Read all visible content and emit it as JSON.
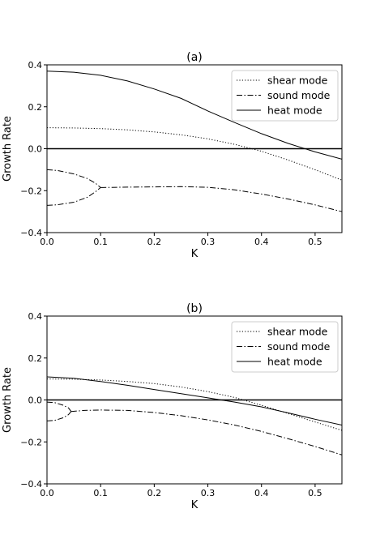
{
  "chart_data": [
    {
      "type": "line",
      "title": "(a)",
      "xlabel": "K",
      "ylabel": "Growth Rate",
      "xlim": [
        0.0,
        0.55
      ],
      "ylim": [
        -0.4,
        0.4
      ],
      "xticks": [
        "0.0",
        "0.1",
        "0.2",
        "0.3",
        "0.4",
        "0.5"
      ],
      "yticks": [
        "−0.4",
        "−0.2",
        "0.0",
        "0.2",
        "0.4"
      ],
      "grid": false,
      "legend_position": "top-right",
      "zero_line": 0.0,
      "series": [
        {
          "name": "shear mode",
          "style": "dotted",
          "segments": [
            [
              [
                0.0,
                0.1
              ],
              [
                0.05,
                0.099
              ],
              [
                0.1,
                0.096
              ],
              [
                0.15,
                0.09
              ],
              [
                0.2,
                0.08
              ],
              [
                0.25,
                0.066
              ],
              [
                0.3,
                0.047
              ],
              [
                0.35,
                0.021
              ],
              [
                0.4,
                -0.012
              ],
              [
                0.45,
                -0.054
              ],
              [
                0.5,
                -0.1
              ],
              [
                0.55,
                -0.15
              ]
            ]
          ]
        },
        {
          "name": "sound mode",
          "style": "dashdot",
          "segments": [
            [
              [
                0.0,
                -0.1
              ],
              [
                0.02,
                -0.104
              ],
              [
                0.05,
                -0.12
              ],
              [
                0.075,
                -0.142
              ],
              [
                0.09,
                -0.164
              ],
              [
                0.1,
                -0.185
              ]
            ],
            [
              [
                0.0,
                -0.27
              ],
              [
                0.02,
                -0.267
              ],
              [
                0.05,
                -0.255
              ],
              [
                0.075,
                -0.232
              ],
              [
                0.09,
                -0.206
              ],
              [
                0.1,
                -0.185
              ]
            ],
            [
              [
                0.1,
                -0.185
              ],
              [
                0.15,
                -0.183
              ],
              [
                0.2,
                -0.182
              ],
              [
                0.25,
                -0.181
              ],
              [
                0.3,
                -0.184
              ],
              [
                0.35,
                -0.196
              ],
              [
                0.4,
                -0.216
              ],
              [
                0.45,
                -0.24
              ],
              [
                0.5,
                -0.268
              ],
              [
                0.55,
                -0.3
              ]
            ]
          ]
        },
        {
          "name": "heat mode",
          "style": "solid",
          "segments": [
            [
              [
                0.0,
                0.37
              ],
              [
                0.05,
                0.365
              ],
              [
                0.1,
                0.35
              ],
              [
                0.15,
                0.323
              ],
              [
                0.2,
                0.285
              ],
              [
                0.25,
                0.24
              ],
              [
                0.3,
                0.18
              ],
              [
                0.35,
                0.125
              ],
              [
                0.4,
                0.072
              ],
              [
                0.45,
                0.025
              ],
              [
                0.5,
                -0.015
              ],
              [
                0.55,
                -0.05
              ]
            ]
          ]
        }
      ]
    },
    {
      "type": "line",
      "title": "(b)",
      "xlabel": "K",
      "ylabel": "Growth Rate",
      "xlim": [
        0.0,
        0.55
      ],
      "ylim": [
        -0.4,
        0.4
      ],
      "xticks": [
        "0.0",
        "0.1",
        "0.2",
        "0.3",
        "0.4",
        "0.5"
      ],
      "yticks": [
        "−0.4",
        "−0.2",
        "0.0",
        "0.2",
        "0.4"
      ],
      "grid": false,
      "legend_position": "top-right",
      "zero_line": 0.0,
      "series": [
        {
          "name": "shear mode",
          "style": "dotted",
          "segments": [
            [
              [
                0.0,
                0.1
              ],
              [
                0.05,
                0.099
              ],
              [
                0.1,
                0.095
              ],
              [
                0.15,
                0.088
              ],
              [
                0.2,
                0.078
              ],
              [
                0.25,
                0.062
              ],
              [
                0.3,
                0.04
              ],
              [
                0.35,
                0.012
              ],
              [
                0.4,
                -0.025
              ],
              [
                0.45,
                -0.065
              ],
              [
                0.5,
                -0.105
              ],
              [
                0.55,
                -0.145
              ]
            ]
          ]
        },
        {
          "name": "sound mode",
          "style": "dashdot",
          "segments": [
            [
              [
                0.0,
                -0.01
              ],
              [
                0.015,
                -0.013
              ],
              [
                0.03,
                -0.025
              ],
              [
                0.04,
                -0.038
              ],
              [
                0.045,
                -0.055
              ]
            ],
            [
              [
                0.0,
                -0.1
              ],
              [
                0.015,
                -0.097
              ],
              [
                0.03,
                -0.085
              ],
              [
                0.04,
                -0.07
              ],
              [
                0.045,
                -0.055
              ]
            ],
            [
              [
                0.045,
                -0.055
              ],
              [
                0.07,
                -0.05
              ],
              [
                0.1,
                -0.048
              ],
              [
                0.15,
                -0.05
              ],
              [
                0.2,
                -0.06
              ],
              [
                0.25,
                -0.075
              ],
              [
                0.3,
                -0.095
              ],
              [
                0.35,
                -0.12
              ],
              [
                0.4,
                -0.15
              ],
              [
                0.45,
                -0.185
              ],
              [
                0.5,
                -0.222
              ],
              [
                0.55,
                -0.262
              ]
            ]
          ]
        },
        {
          "name": "heat mode",
          "style": "solid",
          "segments": [
            [
              [
                0.0,
                0.11
              ],
              [
                0.05,
                0.103
              ],
              [
                0.1,
                0.088
              ],
              [
                0.15,
                0.07
              ],
              [
                0.2,
                0.05
              ],
              [
                0.25,
                0.03
              ],
              [
                0.3,
                0.01
              ],
              [
                0.35,
                -0.01
              ],
              [
                0.4,
                -0.033
              ],
              [
                0.45,
                -0.062
              ],
              [
                0.5,
                -0.092
              ],
              [
                0.55,
                -0.12
              ]
            ]
          ]
        }
      ]
    }
  ]
}
